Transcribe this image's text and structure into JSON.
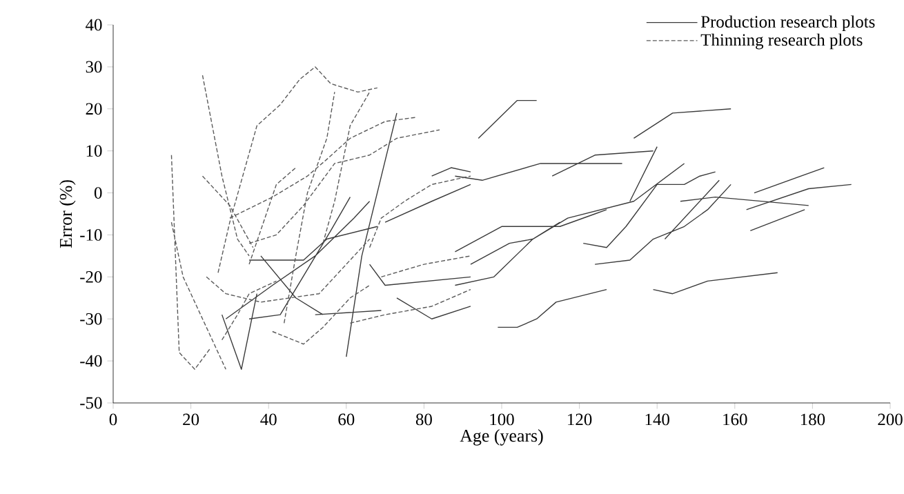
{
  "chart_data": {
    "type": "line",
    "xlabel": "Age (years)",
    "ylabel": "Error (%)",
    "xlim": [
      0,
      200
    ],
    "xticks": [
      0,
      20,
      40,
      60,
      80,
      100,
      120,
      140,
      160,
      180,
      200
    ],
    "ylim": [
      -50,
      40
    ],
    "yticks": [
      -50,
      -40,
      -30,
      -20,
      -10,
      0,
      10,
      20,
      30,
      40
    ],
    "legend": "top right",
    "grid": false,
    "series": [
      {
        "name": "Production research plots",
        "color": "#3a3a3a",
        "line_style": "solid",
        "x": [
          94,
          104,
          109,
          null,
          134,
          144,
          159,
          null,
          99,
          104,
          109,
          114,
          127,
          null,
          139,
          144,
          153,
          171,
          null,
          164,
          178,
          null,
          163,
          179,
          190,
          null,
          88,
          95,
          110,
          131,
          null,
          113,
          124,
          139,
          null,
          133,
          140,
          null,
          88,
          100,
          115,
          124,
          127,
          null,
          92,
          102,
          108,
          117,
          134,
          147,
          null,
          88,
          98,
          108,
          115,
          null,
          124,
          133,
          139,
          147,
          153,
          159,
          null,
          121,
          127,
          132,
          140,
          147,
          151,
          155,
          null,
          142,
          156,
          null,
          146,
          155,
          179,
          null,
          165,
          183,
          null,
          28,
          33,
          37,
          null,
          60,
          64,
          73,
          null,
          35,
          49,
          55,
          68,
          null,
          29,
          41,
          52,
          62,
          66,
          null,
          52,
          69,
          null,
          38,
          47,
          54,
          null,
          66,
          70,
          92,
          null,
          73,
          82,
          92,
          null,
          70,
          82,
          92,
          null,
          82,
          87,
          92,
          null,
          35,
          43,
          56,
          61
        ],
        "values": [
          13,
          22,
          22,
          null,
          13,
          19,
          20,
          null,
          -32,
          -32,
          -30,
          -26,
          -23,
          null,
          -23,
          -24,
          -21,
          -19,
          null,
          -9,
          -4,
          null,
          -4,
          1,
          2,
          null,
          4,
          3,
          7,
          7,
          null,
          4,
          9,
          10,
          null,
          -2,
          11,
          null,
          -14,
          -8,
          -8,
          -5,
          -4,
          null,
          -17,
          -12,
          -11,
          -6,
          -2,
          7,
          null,
          -22,
          -20,
          -11,
          -7,
          null,
          -17,
          -16,
          -11,
          -8,
          -4,
          2,
          null,
          -12,
          -13,
          -8,
          2,
          2,
          4,
          5,
          null,
          -11,
          3,
          null,
          -2,
          -1,
          -3,
          null,
          0,
          6,
          null,
          -29,
          -42,
          -24,
          null,
          -39,
          -15,
          19,
          null,
          -16,
          -16,
          -11,
          -8,
          null,
          -30,
          -22,
          -15,
          -6,
          -2,
          null,
          -29,
          -28,
          null,
          -15,
          -25,
          -29,
          null,
          -17,
          -22,
          -20,
          null,
          -25,
          -30,
          -27,
          null,
          -7,
          -2,
          2,
          null,
          4,
          6,
          5,
          null,
          -30,
          -29,
          -9,
          -1
        ]
      },
      {
        "name": "Thinning research plots",
        "color": "#5a5a5a",
        "line_style": "dashed",
        "x": [
          15,
          17,
          21,
          25,
          null,
          15,
          18,
          29,
          null,
          23,
          28,
          32,
          35,
          null,
          23,
          30,
          36,
          null,
          27,
          30,
          37,
          43,
          48,
          52,
          56,
          63,
          68,
          null,
          30,
          41,
          50,
          55,
          61,
          70,
          78,
          null,
          35,
          42,
          49,
          57,
          66,
          73,
          84,
          null,
          24,
          29,
          38,
          53,
          62,
          66,
          null,
          61,
          70,
          82,
          92,
          null,
          41,
          49,
          54,
          61,
          66,
          null,
          44,
          47,
          50,
          55,
          57,
          null,
          54,
          57,
          61,
          66,
          null,
          66,
          69,
          75,
          82,
          92,
          null,
          69,
          80,
          92,
          null,
          28,
          32,
          35,
          42,
          null,
          35,
          42,
          47
        ],
        "values": [
          9,
          -38,
          -42,
          -37,
          null,
          -7,
          -20,
          -42,
          null,
          28,
          4,
          -11,
          -15,
          null,
          4,
          -3,
          -13,
          null,
          -19,
          -7,
          16,
          21,
          27,
          30,
          26,
          24,
          25,
          null,
          -6,
          -1,
          4,
          8,
          13,
          17,
          18,
          null,
          -12,
          -10,
          -3,
          7,
          9,
          13,
          15,
          null,
          -20,
          -24,
          -26,
          -24,
          -15,
          -11,
          null,
          -31,
          -29,
          -27,
          -23,
          null,
          -33,
          -36,
          -32,
          -25,
          -22,
          null,
          -31,
          -15,
          0,
          13,
          24,
          null,
          -12,
          -2,
          16,
          24,
          null,
          -13,
          -6,
          -2,
          2,
          4,
          null,
          -20,
          -17,
          -15,
          null,
          -35,
          -29,
          -24,
          -21,
          null,
          -17,
          2,
          6
        ]
      }
    ]
  }
}
